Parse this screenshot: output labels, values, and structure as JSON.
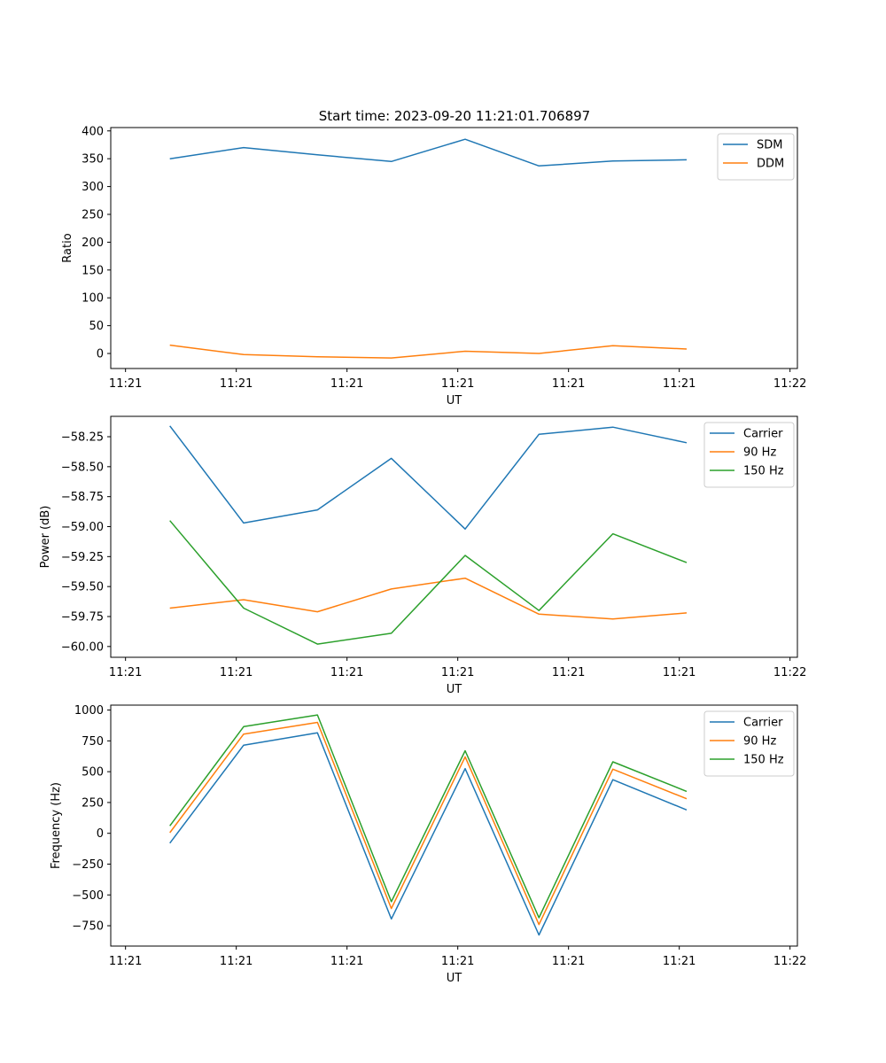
{
  "title": "Start time: 2023-09-20 11:21:01.706897",
  "chart_data": [
    {
      "type": "line",
      "title": "Start time: 2023-09-20 11:21:01.706897",
      "xlabel": "UT",
      "ylabel": "Ratio",
      "x": [
        1,
        2,
        3,
        4,
        5,
        6,
        7,
        8
      ],
      "xlim": [
        0.2,
        9.5
      ],
      "x_ticks": [
        0.4,
        1.9,
        3.4,
        4.9,
        6.4,
        7.9,
        9.4
      ],
      "x_tick_labels": [
        "11:21",
        "11:21",
        "11:21",
        "11:21",
        "11:21",
        "11:21",
        "11:22"
      ],
      "ylim": [
        -27,
        406
      ],
      "y_ticks": [
        0,
        50,
        100,
        150,
        200,
        250,
        300,
        350,
        400
      ],
      "y_tick_labels": [
        "0",
        "50",
        "100",
        "150",
        "200",
        "250",
        "300",
        "350",
        "400"
      ],
      "legend": "top-right",
      "series": [
        {
          "name": "SDM",
          "color": "#1f77b4",
          "values": [
            350,
            370,
            357,
            345,
            385,
            337,
            346,
            348
          ]
        },
        {
          "name": "DDM",
          "color": "#ff7f0e",
          "values": [
            15,
            -2,
            -6,
            -8,
            4,
            0,
            14,
            8
          ]
        }
      ]
    },
    {
      "type": "line",
      "xlabel": "UT",
      "ylabel": "Power (dB)",
      "x": [
        1,
        2,
        3,
        4,
        5,
        6,
        7,
        8
      ],
      "xlim": [
        0.2,
        9.5
      ],
      "x_ticks": [
        0.4,
        1.9,
        3.4,
        4.9,
        6.4,
        7.9,
        9.4
      ],
      "x_tick_labels": [
        "11:21",
        "11:21",
        "11:21",
        "11:21",
        "11:21",
        "11:21",
        "11:22"
      ],
      "ylim": [
        -60.09,
        -58.08
      ],
      "y_ticks": [
        -60.0,
        -59.75,
        -59.5,
        -59.25,
        -59.0,
        -58.75,
        -58.5,
        -58.25
      ],
      "y_tick_labels": [
        "−60.00",
        "−59.75",
        "−59.50",
        "−59.25",
        "−59.00",
        "−58.75",
        "−58.50",
        "−58.25"
      ],
      "legend": "top-right",
      "series": [
        {
          "name": "Carrier",
          "color": "#1f77b4",
          "values": [
            -58.16,
            -58.97,
            -58.86,
            -58.43,
            -59.02,
            -58.23,
            -58.17,
            -58.3
          ]
        },
        {
          "name": "90 Hz",
          "color": "#ff7f0e",
          "values": [
            -59.68,
            -59.61,
            -59.71,
            -59.52,
            -59.43,
            -59.73,
            -59.77,
            -59.72
          ]
        },
        {
          "name": "150 Hz",
          "color": "#2ca02c",
          "values": [
            -58.95,
            -59.68,
            -59.98,
            -59.89,
            -59.24,
            -59.7,
            -59.06,
            -59.3
          ]
        }
      ]
    },
    {
      "type": "line",
      "xlabel": "UT",
      "ylabel": "Frequency (Hz)",
      "x": [
        1,
        2,
        3,
        4,
        5,
        6,
        7,
        8
      ],
      "xlim": [
        0.2,
        9.5
      ],
      "x_ticks": [
        0.4,
        1.9,
        3.4,
        4.9,
        6.4,
        7.9,
        9.4
      ],
      "x_tick_labels": [
        "11:21",
        "11:21",
        "11:21",
        "11:21",
        "11:21",
        "11:21",
        "11:22"
      ],
      "ylim": [
        -915,
        1040
      ],
      "y_ticks": [
        -750,
        -500,
        -250,
        0,
        250,
        500,
        750,
        1000
      ],
      "y_tick_labels": [
        "−750",
        "−500",
        "−250",
        "0",
        "250",
        "500",
        "750",
        "1000"
      ],
      "legend": "top-right",
      "series": [
        {
          "name": "Carrier",
          "color": "#1f77b4",
          "values": [
            -80,
            715,
            815,
            -695,
            525,
            -825,
            435,
            190
          ]
        },
        {
          "name": "90 Hz",
          "color": "#ff7f0e",
          "values": [
            5,
            805,
            900,
            -610,
            620,
            -740,
            520,
            280
          ]
        },
        {
          "name": "150 Hz",
          "color": "#2ca02c",
          "values": [
            60,
            865,
            960,
            -555,
            670,
            -685,
            580,
            340
          ]
        }
      ]
    }
  ]
}
